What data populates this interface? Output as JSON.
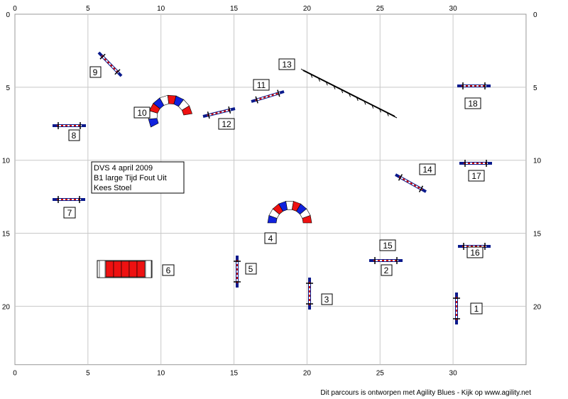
{
  "course": {
    "info_lines": [
      "DVS 4 april 2009",
      "B1 large Tijd Fout Uit",
      "Kees Stoel"
    ],
    "footer": "Dit parcours is ontworpen met Agility Blues - Kijk op www.agility.net",
    "grid": true,
    "x_ticks": [
      "0",
      "5",
      "10",
      "15",
      "20",
      "25",
      "30"
    ],
    "y_ticks": [
      "0",
      "5",
      "10",
      "15",
      "20"
    ],
    "colors": {
      "pole": "#0a1a8c",
      "bar_stripe": "#cc0000",
      "tunnel_red": "#ee1111",
      "tunnel_blue": "#1122dd",
      "grid": "#c8c8c8"
    },
    "labels": {
      "n1": "1",
      "n2": "2",
      "n3": "3",
      "n4": "4",
      "n5": "5",
      "n6": "6",
      "n7": "7",
      "n8": "8",
      "n9": "9",
      "n10": "10",
      "n11": "11",
      "n12": "12",
      "n13": "13",
      "n14": "14",
      "n15": "15",
      "n16": "16",
      "n17": "17",
      "n18": "18"
    }
  }
}
